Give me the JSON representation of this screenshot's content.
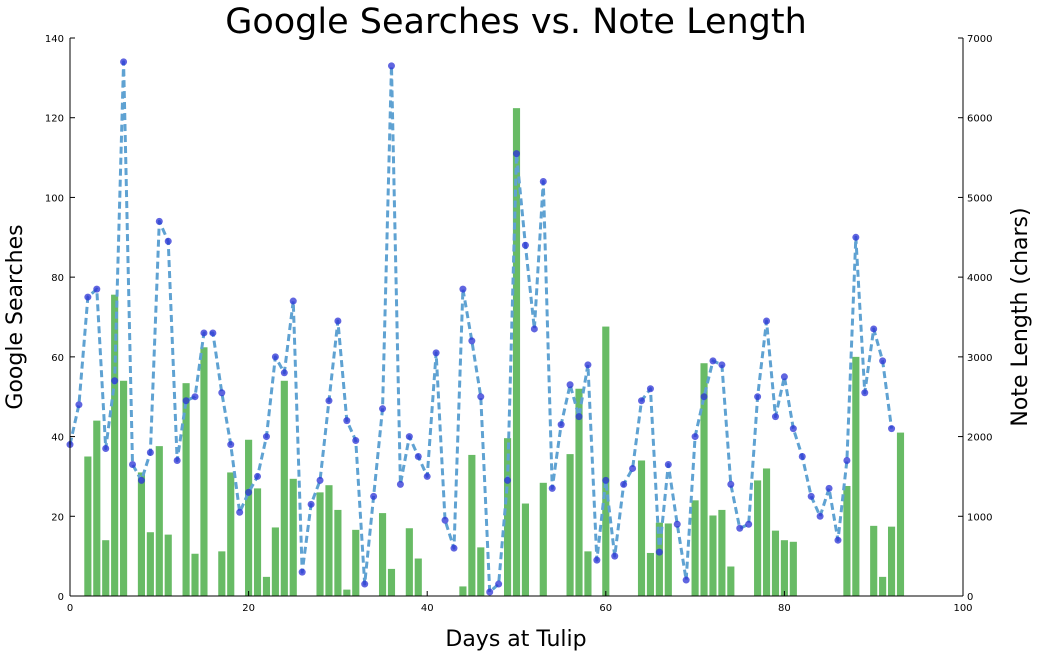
{
  "chart_data": {
    "type": "bar+line",
    "title": "Google Searches vs. Note Length",
    "xlabel": "Days at Tulip",
    "ylabel_left": "Google Searches",
    "ylabel_right": "Note Length (chars)",
    "xlim": [
      0,
      100
    ],
    "ylim_left": [
      0,
      140
    ],
    "ylim_right": [
      0,
      7000
    ],
    "x_ticks": [
      "0",
      "20",
      "40",
      "60",
      "80",
      "100"
    ],
    "y_left_ticks": [
      "0",
      "20",
      "40",
      "60",
      "80",
      "100",
      "120",
      "140"
    ],
    "y_right_ticks": [
      "0",
      "1000",
      "2000",
      "3000",
      "4000",
      "5000",
      "6000",
      "7000"
    ],
    "grid": false,
    "colors": {
      "bars": "#4daf4a",
      "line": "#5fa2d2",
      "points": "#2b32d6"
    },
    "series": [
      {
        "name": "Note Length (chars)",
        "type": "bar",
        "axis": "right",
        "x": [
          2,
          3,
          4,
          5,
          6,
          8,
          9,
          10,
          11,
          13,
          14,
          15,
          17,
          18,
          20,
          21,
          22,
          23,
          24,
          25,
          28,
          29,
          30,
          31,
          32,
          35,
          36,
          38,
          39,
          44,
          45,
          46,
          49,
          50,
          51,
          53,
          56,
          57,
          58,
          60,
          64,
          65,
          66,
          67,
          70,
          71,
          72,
          73,
          74,
          77,
          78,
          79,
          80,
          81,
          87,
          88,
          90,
          91,
          92,
          93
        ],
        "values": [
          1750,
          2200,
          700,
          3780,
          2700,
          1550,
          800,
          1880,
          770,
          2670,
          530,
          3120,
          560,
          1550,
          1960,
          1350,
          240,
          860,
          2700,
          1470,
          1300,
          1390,
          1080,
          80,
          830,
          1040,
          340,
          850,
          470,
          120,
          1770,
          610,
          1980,
          6120,
          1160,
          1420,
          1780,
          2600,
          560,
          3380,
          1700,
          540,
          920,
          910,
          1200,
          2920,
          1010,
          1080,
          370,
          1450,
          1600,
          820,
          700,
          680,
          1380,
          3000,
          880,
          240,
          870,
          2050
        ]
      },
      {
        "name": "Google Searches",
        "type": "line",
        "axis": "left",
        "x": [
          0,
          1,
          2,
          3,
          4,
          5,
          6,
          7,
          8,
          9,
          10,
          11,
          12,
          13,
          14,
          15,
          16,
          17,
          18,
          19,
          20,
          21,
          22,
          23,
          24,
          25,
          26,
          27,
          28,
          29,
          30,
          31,
          32,
          33,
          34,
          35,
          36,
          37,
          38,
          39,
          40,
          41,
          42,
          43,
          44,
          45,
          46,
          47,
          48,
          49,
          50,
          51,
          52,
          53,
          54,
          55,
          56,
          57,
          58,
          59,
          60,
          61,
          62,
          63,
          64,
          65,
          66,
          67,
          68,
          69,
          70,
          71,
          72,
          73,
          74,
          75,
          76,
          77,
          78,
          79,
          80,
          81,
          82,
          83,
          84,
          85,
          86,
          87,
          88,
          89,
          90,
          91,
          92
        ],
        "values": [
          38,
          48,
          75,
          77,
          37,
          54,
          134,
          33,
          29,
          36,
          94,
          89,
          34,
          49,
          50,
          66,
          66,
          51,
          38,
          21,
          26,
          30,
          40,
          60,
          56,
          74,
          6,
          23,
          29,
          49,
          69,
          44,
          39,
          3,
          25,
          47,
          133,
          28,
          40,
          35,
          30,
          61,
          19,
          12,
          77,
          64,
          50,
          1,
          3,
          29,
          111,
          88,
          67,
          104,
          27,
          43,
          53,
          45,
          58,
          9,
          29,
          10,
          28,
          32,
          49,
          52,
          11,
          33,
          18,
          4,
          40,
          50,
          59,
          58,
          28,
          17,
          18,
          50,
          69,
          45,
          55,
          42,
          35,
          25,
          20,
          27,
          14,
          34,
          90,
          51,
          67,
          59,
          42
        ]
      }
    ]
  }
}
